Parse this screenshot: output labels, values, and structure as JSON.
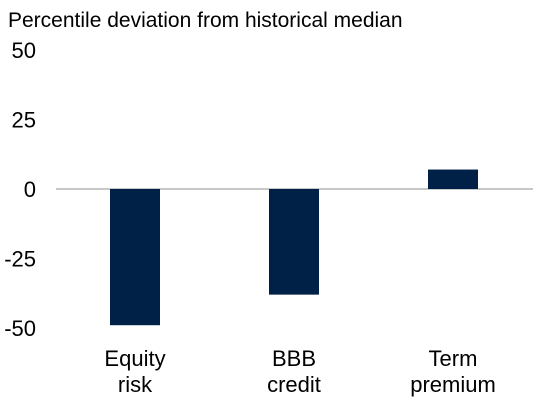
{
  "chart_data": {
    "type": "bar",
    "title": "Percentile deviation from historical median",
    "xlabel": "",
    "ylabel": "",
    "categories": [
      [
        "Equity",
        "risk"
      ],
      [
        "BBB",
        "credit"
      ],
      [
        "Term",
        "premium"
      ]
    ],
    "values": [
      -49,
      -38,
      7
    ],
    "ylim": [
      -50,
      50
    ],
    "yticks": [
      "50",
      "25",
      "0",
      "-25",
      "-50"
    ],
    "ytick_values": [
      50,
      25,
      0,
      -25,
      -50
    ],
    "grid": false,
    "bar_color": "#002147",
    "axis_color": "#a6a6a6"
  }
}
